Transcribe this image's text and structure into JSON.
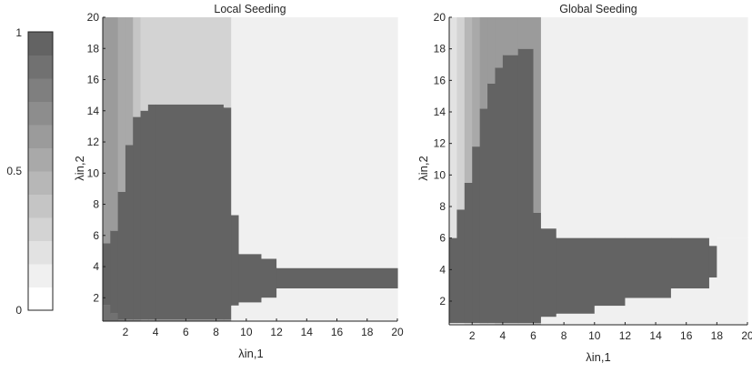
{
  "colorbar": {
    "ticks": [
      "0",
      "0.5",
      "1"
    ],
    "levels": [
      "#ffffff",
      "#f0f0f0",
      "#e2e2e2",
      "#d3d3d3",
      "#c5c5c5",
      "#b7b7b7",
      "#a9a9a9",
      "#9b9b9b",
      "#8d8d8d",
      "#7f7f7f",
      "#717171",
      "#636363"
    ]
  },
  "chart_data": [
    {
      "type": "heatmap",
      "title": "Local Seeding",
      "xlabel": "λin,1",
      "ylabel": "λin,2",
      "xlim": [
        0.5,
        20
      ],
      "ylim": [
        0.5,
        20
      ],
      "xticks": [
        "2",
        "4",
        "6",
        "8",
        "10",
        "12",
        "14",
        "16",
        "18",
        "20"
      ],
      "yticks": [
        "2",
        "4",
        "6",
        "8",
        "10",
        "12",
        "14",
        "16",
        "18",
        "20"
      ],
      "colorscale": [
        0,
        1
      ],
      "bands": [
        {
          "x": [
            0.5,
            1.0
          ],
          "high_lo": 5.5,
          "high_hi": 1.5,
          "shades": [
            0.92,
            0.62,
            0.6
          ]
        },
        {
          "x": [
            1.0,
            1.5
          ],
          "high_lo": 6.3,
          "high_hi": 1.0,
          "shades": [
            0.95,
            0.62,
            0.6
          ]
        },
        {
          "x": [
            1.5,
            2.0
          ],
          "high_lo": 8.8,
          "high_hi": 0.6,
          "shades": [
            0.88,
            0.58,
            0.6
          ]
        },
        {
          "x": [
            2.0,
            2.5
          ],
          "high_lo": 11.8,
          "high_hi": 0.6,
          "shades": [
            0.85,
            0.5,
            0.55
          ]
        },
        {
          "x": [
            2.5,
            3.0
          ],
          "high_lo": 13.6,
          "high_hi": 0.6,
          "shades": [
            0.78,
            0.4,
            0.6
          ]
        },
        {
          "x": [
            3.0,
            3.5
          ],
          "high_lo": 14.0,
          "high_hi": 0.6,
          "shades": [
            0.75,
            0.3,
            0.6
          ]
        },
        {
          "x": [
            3.5,
            4.0
          ],
          "high_lo": 14.4,
          "high_hi": 0.6,
          "shades": [
            0.72,
            0.3,
            0.6
          ]
        },
        {
          "x": [
            4.0,
            8.5
          ],
          "high_lo": 14.4,
          "high_hi": 0.6,
          "shades": [
            0.72,
            0.3,
            0.6
          ]
        },
        {
          "x": [
            8.5,
            9.0
          ],
          "high_lo": 14.2,
          "high_hi": 0.6,
          "shades": [
            0.72,
            0.3,
            0.6
          ]
        },
        {
          "x": [
            9.0,
            9.5
          ],
          "high_lo": 7.3,
          "high_hi": 1.5,
          "shades": [
            0.1,
            0.1,
            0.6
          ]
        },
        {
          "x": [
            9.5,
            11.0
          ],
          "high_lo": 4.8,
          "high_hi": 1.7,
          "shades": [
            0.05,
            0.05,
            0.5
          ]
        },
        {
          "x": [
            11.0,
            12.0
          ],
          "high_lo": 4.5,
          "high_hi": 2.0,
          "shades": [
            0.05,
            0.05,
            0.4
          ]
        },
        {
          "x": [
            12.0,
            20.0
          ],
          "high_lo": 3.9,
          "high_hi": 2.6,
          "shades": [
            0.05,
            0.05,
            0.12
          ]
        }
      ],
      "notes": "Dark region (value ≈ 1) spans x 0.5–9.5 for y up to ~14.5 and continues as a horizontal band y ≈ 2.5–4 out to x = 20."
    },
    {
      "type": "heatmap",
      "title": "Global Seeding",
      "xlabel": "λin,1",
      "ylabel": "λin,2",
      "xlim": [
        0.5,
        20
      ],
      "ylim": [
        0.5,
        20
      ],
      "xticks": [
        "2",
        "4",
        "6",
        "8",
        "10",
        "12",
        "14",
        "16",
        "18",
        "20"
      ],
      "yticks": [
        "2",
        "4",
        "6",
        "8",
        "10",
        "12",
        "14",
        "16",
        "18",
        "20"
      ],
      "colorscale": [
        0,
        1
      ],
      "bands": [
        {
          "x": [
            0.5,
            1.0
          ],
          "high_lo": 6.0,
          "high_hi": 0.6,
          "shades": [
            0.1,
            0.2,
            0.6
          ]
        },
        {
          "x": [
            1.0,
            1.5
          ],
          "high_lo": 7.8,
          "high_hi": 0.6,
          "shades": [
            0.12,
            0.3,
            0.6
          ]
        },
        {
          "x": [
            1.5,
            2.0
          ],
          "high_lo": 9.5,
          "high_hi": 0.6,
          "shades": [
            0.15,
            0.45,
            0.6
          ]
        },
        {
          "x": [
            2.0,
            2.5
          ],
          "high_lo": 11.8,
          "high_hi": 0.6,
          "shades": [
            0.2,
            0.55,
            0.6
          ]
        },
        {
          "x": [
            2.5,
            3.0
          ],
          "high_lo": 14.2,
          "high_hi": 0.6,
          "shades": [
            0.25,
            0.6,
            0.6
          ]
        },
        {
          "x": [
            3.0,
            3.5
          ],
          "high_lo": 15.8,
          "high_hi": 0.6,
          "shades": [
            0.3,
            0.62,
            0.6
          ]
        },
        {
          "x": [
            3.5,
            4.0
          ],
          "high_lo": 16.8,
          "high_hi": 0.6,
          "shades": [
            0.35,
            0.62,
            0.6
          ]
        },
        {
          "x": [
            4.0,
            5.0
          ],
          "high_lo": 17.6,
          "high_hi": 0.6,
          "shades": [
            0.4,
            0.62,
            0.6
          ]
        },
        {
          "x": [
            5.0,
            6.0
          ],
          "high_lo": 18.0,
          "high_hi": 0.6,
          "shades": [
            0.4,
            0.62,
            0.6
          ]
        },
        {
          "x": [
            6.0,
            6.5
          ],
          "high_lo": 7.6,
          "high_hi": 0.6,
          "shades": [
            0.45,
            0.62,
            0.6
          ]
        },
        {
          "x": [
            6.5,
            7.5
          ],
          "high_lo": 6.6,
          "high_hi": 1.0,
          "shades": [
            0.1,
            0.1,
            0.6
          ]
        },
        {
          "x": [
            7.5,
            10.0
          ],
          "high_lo": 6.0,
          "high_hi": 1.2,
          "shades": [
            0.05,
            0.05,
            0.6
          ]
        },
        {
          "x": [
            10.0,
            12.0
          ],
          "high_lo": 6.0,
          "high_hi": 1.7,
          "shades": [
            0.05,
            0.05,
            0.5
          ]
        },
        {
          "x": [
            12.0,
            15.0
          ],
          "high_lo": 6.0,
          "high_hi": 2.2,
          "shades": [
            0.05,
            0.05,
            0.2
          ]
        },
        {
          "x": [
            15.0,
            17.5
          ],
          "high_lo": 6.0,
          "high_hi": 2.8,
          "shades": [
            0.05,
            0.05,
            0.3
          ]
        },
        {
          "x": [
            17.5,
            18.0
          ],
          "high_lo": 5.5,
          "high_hi": 3.5,
          "shades": [
            0.05,
            0.05,
            0.4
          ]
        },
        {
          "x": [
            18.0,
            20.0
          ],
          "high_lo": 6.0,
          "high_hi": 6.0,
          "shades": [
            0.05,
            0.05,
            0.4
          ]
        }
      ],
      "notes": "Dark region (value ≈ 1) forms a tall peak up to y ≈ 18 for x ≈ 4–6 and a horizontal band y ≈ 1–6 extending to x ≈ 18."
    }
  ]
}
